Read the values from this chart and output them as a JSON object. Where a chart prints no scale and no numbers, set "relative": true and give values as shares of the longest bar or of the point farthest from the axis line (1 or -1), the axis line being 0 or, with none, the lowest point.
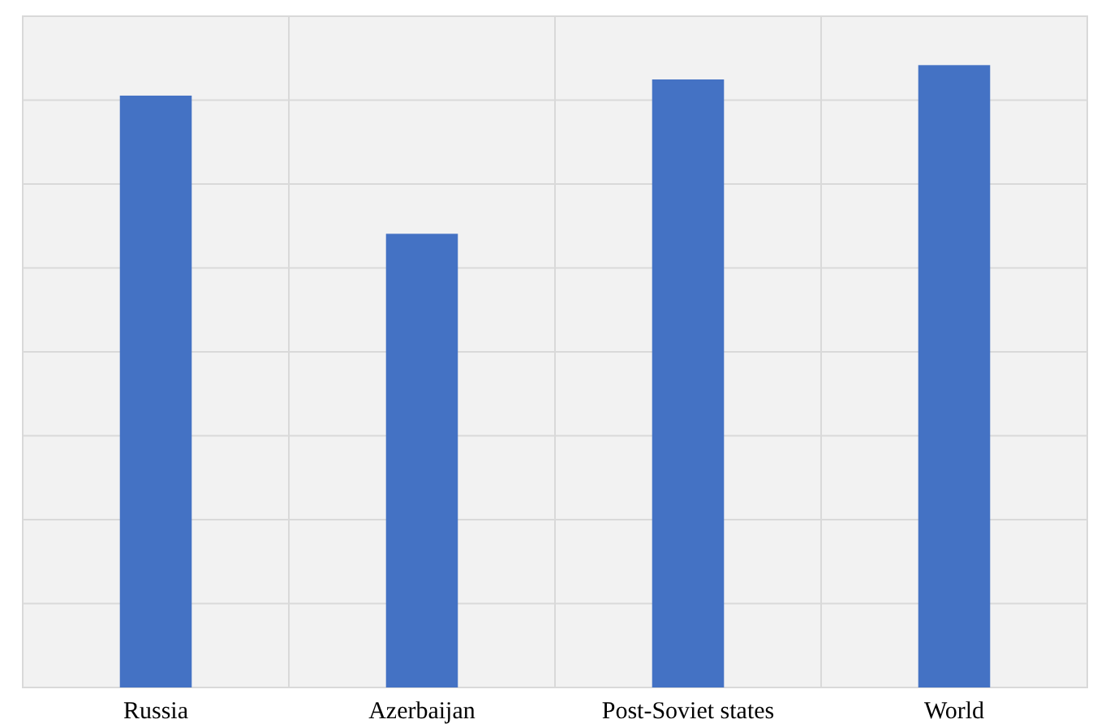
{
  "chart_data": {
    "type": "bar",
    "relative": true,
    "categories": [
      "Russia",
      "Azerbaijan",
      "Post-Soviet states",
      "World"
    ],
    "values": [
      0.951,
      0.729,
      0.977,
      1
    ],
    "color": "#4472c4",
    "grid": true
  }
}
